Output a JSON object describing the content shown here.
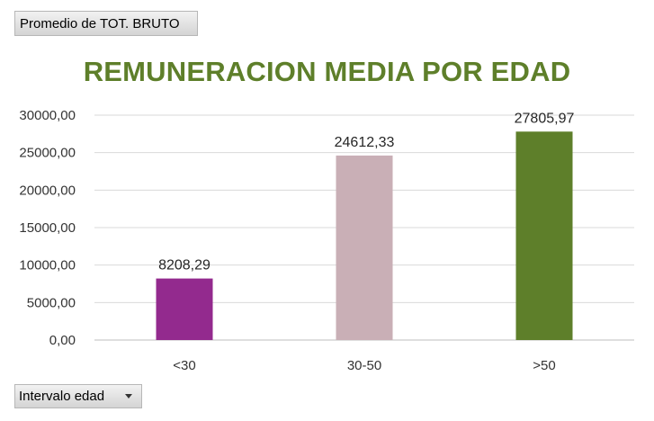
{
  "value_field_label": "Promedio de TOT. BRUTO",
  "axis_field_label": "Intervalo edad",
  "chart_data": {
    "type": "bar",
    "title": "REMUNERACION MEDIA POR EDAD",
    "categories": [
      "<30",
      "30-50",
      ">50"
    ],
    "values": [
      8208.29,
      24612.33,
      27805.97
    ],
    "data_labels": [
      "8208,29",
      "24612,33",
      "27805,97"
    ],
    "bar_colors": [
      "#932a8e",
      "#c9afb6",
      "#5e7f2a"
    ],
    "ylim": [
      0,
      30000
    ],
    "yticks": [
      0,
      5000,
      10000,
      15000,
      20000,
      25000,
      30000
    ],
    "ytick_labels": [
      "0,00",
      "5000,00",
      "10000,00",
      "15000,00",
      "20000,00",
      "25000,00",
      "30000,00"
    ],
    "grid": true,
    "title_color": "#5e7f2a"
  }
}
